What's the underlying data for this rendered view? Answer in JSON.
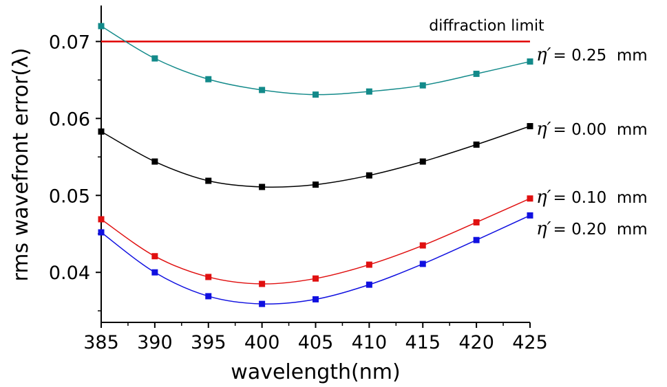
{
  "chart_data": {
    "type": "line",
    "xlabel": "wavelength(nm)",
    "ylabel": "rms wavefront error(λ)",
    "xlim": [
      385,
      425
    ],
    "ylim": [
      0.0335,
      0.0745
    ],
    "x": [
      385,
      390,
      395,
      400,
      405,
      410,
      415,
      420,
      425
    ],
    "x_ticks": [
      "385",
      "390",
      "395",
      "400",
      "405",
      "410",
      "415",
      "420",
      "425"
    ],
    "y_ticks": [
      {
        "value": 0.04,
        "label": "0.04"
      },
      {
        "value": 0.05,
        "label": "0.05"
      },
      {
        "value": 0.06,
        "label": "0.06"
      },
      {
        "value": 0.07,
        "label": "0.07"
      }
    ],
    "reference_line": {
      "label": "diffraction limit",
      "value": 0.07,
      "color": "#e00000"
    },
    "series": [
      {
        "id": "eta-025",
        "name_symbol": "η′",
        "name_value": "= 0.25  mm",
        "color": "#138a8a",
        "values": [
          0.072,
          0.0678,
          0.0651,
          0.0637,
          0.0631,
          0.0635,
          0.0643,
          0.0658,
          0.0674
        ]
      },
      {
        "id": "eta-000",
        "name_symbol": "η′",
        "name_value": "= 0.00  mm",
        "color": "#000000",
        "values": [
          0.0583,
          0.0544,
          0.0519,
          0.0511,
          0.0514,
          0.0526,
          0.0544,
          0.0566,
          0.059
        ]
      },
      {
        "id": "eta-010",
        "name_symbol": "η′",
        "name_value": "= 0.10  mm",
        "color": "#e01010",
        "values": [
          0.0469,
          0.0421,
          0.0394,
          0.0385,
          0.0392,
          0.041,
          0.0435,
          0.0465,
          0.0496
        ]
      },
      {
        "id": "eta-020",
        "name_symbol": "η′",
        "name_value": "= 0.20  mm",
        "color": "#1010e0",
        "values": [
          0.0452,
          0.04,
          0.0369,
          0.0359,
          0.0365,
          0.0384,
          0.0411,
          0.0442,
          0.0474
        ]
      }
    ]
  }
}
